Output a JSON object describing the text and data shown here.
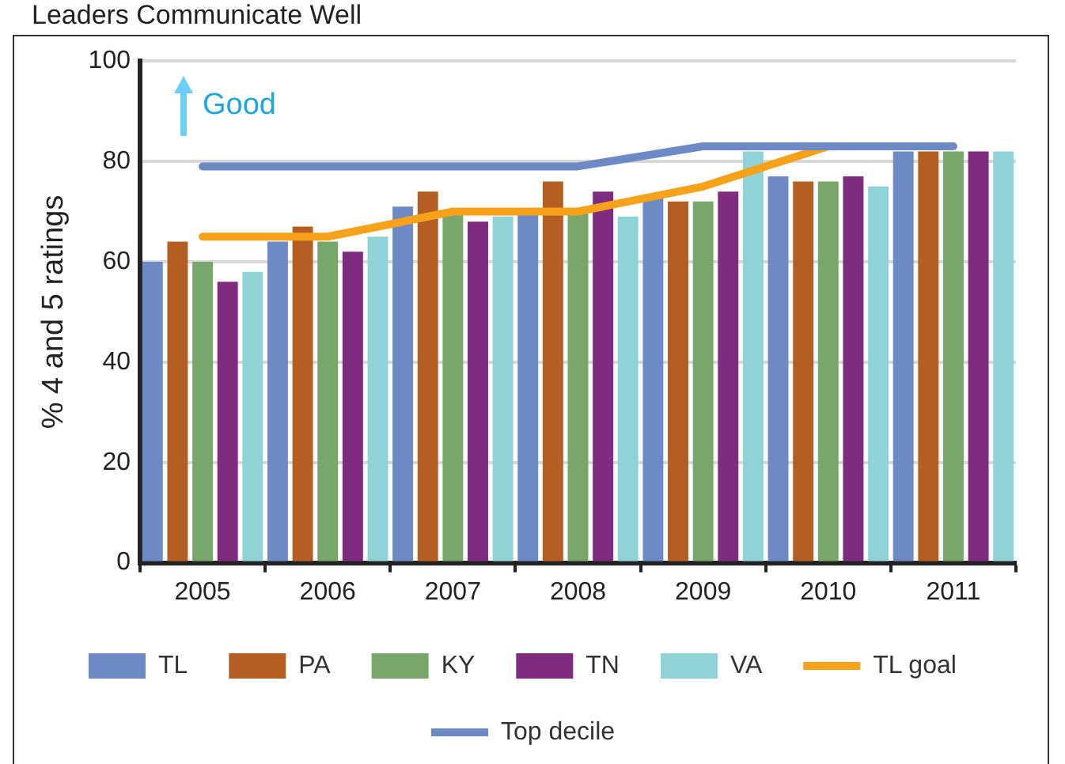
{
  "chart_data": {
    "type": "bar",
    "title": "Leaders Communicate Well",
    "ylabel": "% 4 and 5 ratings",
    "categories": [
      "2005",
      "2006",
      "2007",
      "2008",
      "2009",
      "2010",
      "2011"
    ],
    "series": [
      {
        "name": "TL",
        "color": "#6d8ac5",
        "values": [
          60,
          64,
          71,
          70,
          73,
          77,
          82
        ]
      },
      {
        "name": "PA",
        "color": "#b55e23",
        "values": [
          64,
          67,
          74,
          76,
          72,
          76,
          82
        ]
      },
      {
        "name": "KY",
        "color": "#79a66a",
        "values": [
          60,
          64,
          70,
          70,
          72,
          76,
          82
        ]
      },
      {
        "name": "TN",
        "color": "#7f2b80",
        "values": [
          56,
          62,
          68,
          74,
          74,
          77,
          82
        ]
      },
      {
        "name": "VA",
        "color": "#8fd3d6",
        "values": [
          58,
          65,
          69,
          69,
          82,
          75,
          82
        ]
      },
      {
        "name": "TL goal",
        "type": "line",
        "color": "#f7a21b",
        "values": [
          65,
          65,
          70,
          70,
          75,
          83,
          null
        ]
      },
      {
        "name": "Top decile",
        "type": "line",
        "color": "#6d8ac5",
        "values": [
          79,
          79,
          79,
          79,
          83,
          83,
          83
        ]
      }
    ],
    "ylim": [
      0,
      100
    ],
    "yticks": [
      0,
      20,
      40,
      60,
      80,
      100
    ],
    "grid": "y",
    "legend": "bottom",
    "marker": "none",
    "annotations": [
      "Good"
    ]
  }
}
